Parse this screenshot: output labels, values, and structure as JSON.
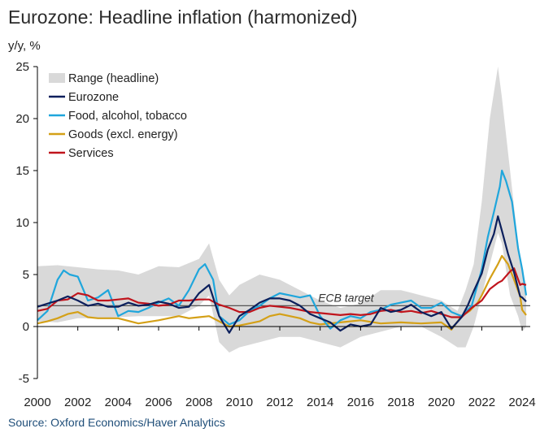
{
  "chart_data": {
    "type": "line",
    "title": "Eurozone: Headline inflation (harmonized)",
    "ylabel": "y/y, %",
    "xlabel": "",
    "source": "Source: Oxford Economics/Haver Analytics",
    "ylim": [
      -5,
      25
    ],
    "xlim": [
      2000,
      2024.4
    ],
    "y_ticks": [
      -5,
      0,
      5,
      10,
      15,
      20,
      25
    ],
    "x_ticks": [
      2000,
      2002,
      2004,
      2006,
      2008,
      2010,
      2012,
      2014,
      2016,
      2018,
      2020,
      2022,
      2024
    ],
    "legend_position": "top-left",
    "legend": [
      "Range (headline)",
      "Eurozone",
      "Food, alcohol, tobacco",
      "Goods (excl. energy)",
      "Services"
    ],
    "annotation": {
      "text": "ECB target",
      "value": 2
    },
    "colors": {
      "range": "#d9d9d9",
      "eurozone": "#0b1f5c",
      "food": "#1fa6dc",
      "goods": "#d4a017",
      "services": "#c0141c",
      "target": "#555555",
      "axis": "#000000"
    },
    "range_band": {
      "x": [
        2000,
        2001,
        2002,
        2003,
        2004,
        2005,
        2006,
        2007,
        2008,
        2008.5,
        2009,
        2009.5,
        2010,
        2011,
        2012,
        2013,
        2014,
        2015,
        2016,
        2017,
        2018,
        2019,
        2020,
        2020.8,
        2021.2,
        2021.6,
        2022,
        2022.4,
        2022.8,
        2023,
        2023.4,
        2023.8,
        2024,
        2024.2
      ],
      "low": [
        0.5,
        0.4,
        0.8,
        0.8,
        0.9,
        1.0,
        1.0,
        1.0,
        2.0,
        3.0,
        -1.5,
        -2.5,
        -2.0,
        -1.5,
        -1.0,
        -1.0,
        -1.5,
        -2.0,
        -1.0,
        -0.5,
        0.0,
        0.0,
        -1.0,
        -2.0,
        -2.0,
        0.0,
        3.0,
        6.0,
        9.0,
        8.0,
        3.0,
        1.0,
        -0.5,
        0.0
      ],
      "high": [
        5.8,
        5.9,
        5.7,
        5.5,
        5.4,
        5.0,
        5.8,
        5.7,
        6.5,
        8.0,
        4.5,
        3.0,
        4.0,
        5.0,
        4.5,
        3.5,
        2.5,
        1.8,
        2.2,
        3.5,
        3.5,
        3.0,
        2.5,
        1.5,
        3.5,
        6.0,
        12.0,
        20.0,
        25.0,
        22.0,
        15.0,
        8.0,
        5.5,
        4.0
      ]
    },
    "series": [
      {
        "name": "Eurozone",
        "x": [
          2000,
          2000.5,
          2001,
          2001.5,
          2002,
          2002.5,
          2003,
          2003.5,
          2004,
          2004.5,
          2005,
          2005.5,
          2006,
          2006.5,
          2007,
          2007.5,
          2008,
          2008.5,
          2009,
          2009.5,
          2010,
          2010.5,
          2011,
          2011.5,
          2012,
          2012.5,
          2013,
          2013.5,
          2014,
          2014.5,
          2015,
          2015.5,
          2016,
          2016.5,
          2017,
          2017.5,
          2018,
          2018.5,
          2019,
          2019.5,
          2020,
          2020.5,
          2021,
          2021.3,
          2021.6,
          2022,
          2022.3,
          2022.6,
          2022.8,
          2023,
          2023.3,
          2023.6,
          2023.9,
          2024,
          2024.2
        ],
        "y": [
          1.9,
          2.2,
          2.5,
          2.9,
          2.5,
          2.0,
          2.2,
          1.9,
          1.9,
          2.3,
          2.0,
          2.1,
          2.4,
          2.2,
          1.8,
          1.9,
          3.2,
          4.0,
          1.0,
          -0.6,
          1.0,
          1.6,
          2.3,
          2.7,
          2.7,
          2.5,
          2.0,
          1.2,
          0.8,
          0.4,
          -0.4,
          0.2,
          0.0,
          0.2,
          1.8,
          1.4,
          1.6,
          2.1,
          1.4,
          1.0,
          1.4,
          -0.2,
          0.9,
          2.0,
          3.4,
          5.1,
          7.4,
          8.9,
          10.6,
          9.2,
          7.0,
          5.2,
          2.9,
          2.8,
          2.4
        ]
      },
      {
        "name": "Food, alcohol, tobacco",
        "x": [
          2000,
          2000.5,
          2001,
          2001.3,
          2001.6,
          2002,
          2002.5,
          2003,
          2003.5,
          2004,
          2004.5,
          2005,
          2005.5,
          2006,
          2006.5,
          2007,
          2007.5,
          2008,
          2008.3,
          2008.7,
          2009,
          2009.5,
          2010,
          2010.5,
          2011,
          2011.5,
          2012,
          2012.5,
          2013,
          2013.5,
          2014,
          2014.5,
          2015,
          2015.5,
          2016,
          2016.5,
          2017,
          2017.5,
          2018,
          2018.5,
          2019,
          2019.5,
          2020,
          2020.5,
          2021,
          2021.5,
          2022,
          2022.3,
          2022.6,
          2022.9,
          2023,
          2023.2,
          2023.5,
          2023.8,
          2024,
          2024.2
        ],
        "y": [
          0.6,
          1.5,
          4.5,
          5.4,
          5.0,
          4.8,
          2.5,
          2.8,
          3.5,
          1.0,
          1.5,
          1.4,
          1.8,
          2.3,
          2.7,
          2.0,
          3.5,
          5.5,
          6.0,
          4.5,
          1.0,
          0.2,
          0.6,
          1.5,
          2.0,
          2.7,
          3.2,
          3.0,
          2.8,
          3.0,
          1.0,
          -0.2,
          0.6,
          1.0,
          0.8,
          1.4,
          1.6,
          2.1,
          2.3,
          2.5,
          1.8,
          1.8,
          2.3,
          1.4,
          1.0,
          2.0,
          5.5,
          8.6,
          11.0,
          13.5,
          15.0,
          14.0,
          12.0,
          7.5,
          5.5,
          3.0
        ]
      },
      {
        "name": "Goods (excl. energy)",
        "x": [
          2000,
          2000.5,
          2001,
          2001.5,
          2002,
          2002.5,
          2003,
          2004,
          2005,
          2006,
          2007,
          2007.5,
          2008,
          2008.5,
          2009,
          2009.5,
          2010,
          2010.5,
          2011,
          2011.5,
          2012,
          2012.5,
          2013,
          2013.5,
          2014,
          2015,
          2016,
          2017,
          2018,
          2019,
          2020,
          2020.5,
          2021,
          2021.4,
          2021.8,
          2022,
          2022.4,
          2022.8,
          2023,
          2023.3,
          2023.6,
          2023.9,
          2024,
          2024.2
        ],
        "y": [
          0.3,
          0.5,
          0.8,
          1.2,
          1.4,
          0.9,
          0.8,
          0.8,
          0.3,
          0.6,
          1.0,
          0.8,
          0.9,
          1.0,
          0.5,
          0.0,
          0.1,
          0.3,
          0.5,
          1.0,
          1.2,
          1.0,
          0.8,
          0.4,
          0.2,
          0.4,
          0.6,
          0.3,
          0.4,
          0.3,
          0.4,
          -0.3,
          1.0,
          1.5,
          2.3,
          3.0,
          4.6,
          6.0,
          6.8,
          6.0,
          4.5,
          2.9,
          1.6,
          1.1
        ]
      },
      {
        "name": "Services",
        "x": [
          2000,
          2000.5,
          2001,
          2001.5,
          2002,
          2002.5,
          2003,
          2003.5,
          2004,
          2004.5,
          2005,
          2005.5,
          2006,
          2006.5,
          2007,
          2007.5,
          2008,
          2008.5,
          2009,
          2009.5,
          2010,
          2010.5,
          2011,
          2011.5,
          2012,
          2012.5,
          2013,
          2013.5,
          2014,
          2014.5,
          2015,
          2015.5,
          2016,
          2016.5,
          2017,
          2017.5,
          2018,
          2018.5,
          2019,
          2019.5,
          2020,
          2020.5,
          2021,
          2021.5,
          2022,
          2022.4,
          2022.8,
          2023,
          2023.4,
          2023.6,
          2023.9,
          2024,
          2024.2
        ],
        "y": [
          1.5,
          1.7,
          2.5,
          2.6,
          3.2,
          3.0,
          2.5,
          2.5,
          2.6,
          2.7,
          2.3,
          2.2,
          2.0,
          2.1,
          2.5,
          2.5,
          2.6,
          2.6,
          2.1,
          1.8,
          1.4,
          1.4,
          1.8,
          2.0,
          1.9,
          1.8,
          1.6,
          1.4,
          1.3,
          1.2,
          1.1,
          1.2,
          1.1,
          1.2,
          1.5,
          1.6,
          1.4,
          1.5,
          1.3,
          1.5,
          1.2,
          0.9,
          0.9,
          1.8,
          2.5,
          3.6,
          4.2,
          4.4,
          5.3,
          5.6,
          4.0,
          4.1,
          4.0
        ]
      }
    ]
  }
}
